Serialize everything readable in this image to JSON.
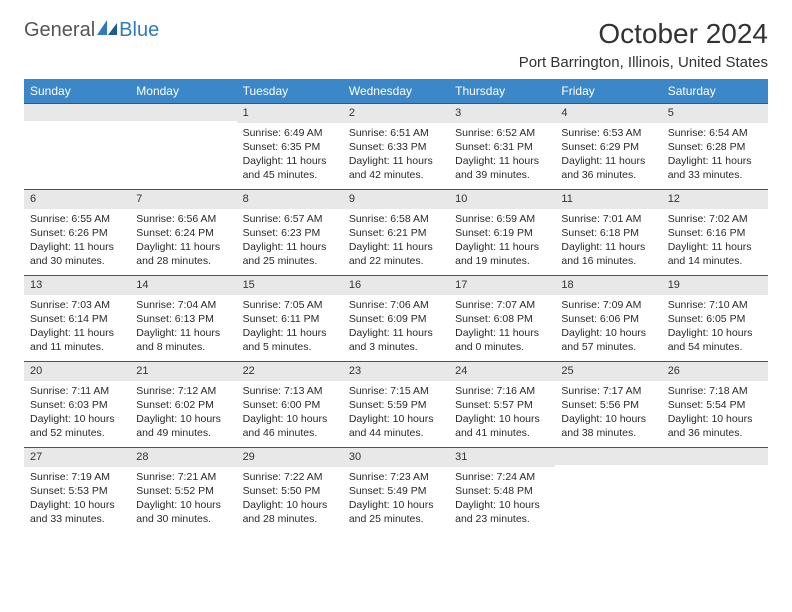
{
  "logo": {
    "text1": "General",
    "text2": "Blue"
  },
  "title": "October 2024",
  "location": "Port Barrington, Illinois, United States",
  "colors": {
    "header_bg": "#3b87c8",
    "header_text": "#ffffff",
    "daynum_bg": "#e8e8e8",
    "rule": "#2b5a86",
    "page_bg": "#ffffff",
    "text": "#222222"
  },
  "day_headers": [
    "Sunday",
    "Monday",
    "Tuesday",
    "Wednesday",
    "Thursday",
    "Friday",
    "Saturday"
  ],
  "weeks": [
    [
      {
        "num": "",
        "sunrise": "",
        "sunset": "",
        "daylight": ""
      },
      {
        "num": "",
        "sunrise": "",
        "sunset": "",
        "daylight": ""
      },
      {
        "num": "1",
        "sunrise": "Sunrise: 6:49 AM",
        "sunset": "Sunset: 6:35 PM",
        "daylight": "Daylight: 11 hours and 45 minutes."
      },
      {
        "num": "2",
        "sunrise": "Sunrise: 6:51 AM",
        "sunset": "Sunset: 6:33 PM",
        "daylight": "Daylight: 11 hours and 42 minutes."
      },
      {
        "num": "3",
        "sunrise": "Sunrise: 6:52 AM",
        "sunset": "Sunset: 6:31 PM",
        "daylight": "Daylight: 11 hours and 39 minutes."
      },
      {
        "num": "4",
        "sunrise": "Sunrise: 6:53 AM",
        "sunset": "Sunset: 6:29 PM",
        "daylight": "Daylight: 11 hours and 36 minutes."
      },
      {
        "num": "5",
        "sunrise": "Sunrise: 6:54 AM",
        "sunset": "Sunset: 6:28 PM",
        "daylight": "Daylight: 11 hours and 33 minutes."
      }
    ],
    [
      {
        "num": "6",
        "sunrise": "Sunrise: 6:55 AM",
        "sunset": "Sunset: 6:26 PM",
        "daylight": "Daylight: 11 hours and 30 minutes."
      },
      {
        "num": "7",
        "sunrise": "Sunrise: 6:56 AM",
        "sunset": "Sunset: 6:24 PM",
        "daylight": "Daylight: 11 hours and 28 minutes."
      },
      {
        "num": "8",
        "sunrise": "Sunrise: 6:57 AM",
        "sunset": "Sunset: 6:23 PM",
        "daylight": "Daylight: 11 hours and 25 minutes."
      },
      {
        "num": "9",
        "sunrise": "Sunrise: 6:58 AM",
        "sunset": "Sunset: 6:21 PM",
        "daylight": "Daylight: 11 hours and 22 minutes."
      },
      {
        "num": "10",
        "sunrise": "Sunrise: 6:59 AM",
        "sunset": "Sunset: 6:19 PM",
        "daylight": "Daylight: 11 hours and 19 minutes."
      },
      {
        "num": "11",
        "sunrise": "Sunrise: 7:01 AM",
        "sunset": "Sunset: 6:18 PM",
        "daylight": "Daylight: 11 hours and 16 minutes."
      },
      {
        "num": "12",
        "sunrise": "Sunrise: 7:02 AM",
        "sunset": "Sunset: 6:16 PM",
        "daylight": "Daylight: 11 hours and 14 minutes."
      }
    ],
    [
      {
        "num": "13",
        "sunrise": "Sunrise: 7:03 AM",
        "sunset": "Sunset: 6:14 PM",
        "daylight": "Daylight: 11 hours and 11 minutes."
      },
      {
        "num": "14",
        "sunrise": "Sunrise: 7:04 AM",
        "sunset": "Sunset: 6:13 PM",
        "daylight": "Daylight: 11 hours and 8 minutes."
      },
      {
        "num": "15",
        "sunrise": "Sunrise: 7:05 AM",
        "sunset": "Sunset: 6:11 PM",
        "daylight": "Daylight: 11 hours and 5 minutes."
      },
      {
        "num": "16",
        "sunrise": "Sunrise: 7:06 AM",
        "sunset": "Sunset: 6:09 PM",
        "daylight": "Daylight: 11 hours and 3 minutes."
      },
      {
        "num": "17",
        "sunrise": "Sunrise: 7:07 AM",
        "sunset": "Sunset: 6:08 PM",
        "daylight": "Daylight: 11 hours and 0 minutes."
      },
      {
        "num": "18",
        "sunrise": "Sunrise: 7:09 AM",
        "sunset": "Sunset: 6:06 PM",
        "daylight": "Daylight: 10 hours and 57 minutes."
      },
      {
        "num": "19",
        "sunrise": "Sunrise: 7:10 AM",
        "sunset": "Sunset: 6:05 PM",
        "daylight": "Daylight: 10 hours and 54 minutes."
      }
    ],
    [
      {
        "num": "20",
        "sunrise": "Sunrise: 7:11 AM",
        "sunset": "Sunset: 6:03 PM",
        "daylight": "Daylight: 10 hours and 52 minutes."
      },
      {
        "num": "21",
        "sunrise": "Sunrise: 7:12 AM",
        "sunset": "Sunset: 6:02 PM",
        "daylight": "Daylight: 10 hours and 49 minutes."
      },
      {
        "num": "22",
        "sunrise": "Sunrise: 7:13 AM",
        "sunset": "Sunset: 6:00 PM",
        "daylight": "Daylight: 10 hours and 46 minutes."
      },
      {
        "num": "23",
        "sunrise": "Sunrise: 7:15 AM",
        "sunset": "Sunset: 5:59 PM",
        "daylight": "Daylight: 10 hours and 44 minutes."
      },
      {
        "num": "24",
        "sunrise": "Sunrise: 7:16 AM",
        "sunset": "Sunset: 5:57 PM",
        "daylight": "Daylight: 10 hours and 41 minutes."
      },
      {
        "num": "25",
        "sunrise": "Sunrise: 7:17 AM",
        "sunset": "Sunset: 5:56 PM",
        "daylight": "Daylight: 10 hours and 38 minutes."
      },
      {
        "num": "26",
        "sunrise": "Sunrise: 7:18 AM",
        "sunset": "Sunset: 5:54 PM",
        "daylight": "Daylight: 10 hours and 36 minutes."
      }
    ],
    [
      {
        "num": "27",
        "sunrise": "Sunrise: 7:19 AM",
        "sunset": "Sunset: 5:53 PM",
        "daylight": "Daylight: 10 hours and 33 minutes."
      },
      {
        "num": "28",
        "sunrise": "Sunrise: 7:21 AM",
        "sunset": "Sunset: 5:52 PM",
        "daylight": "Daylight: 10 hours and 30 minutes."
      },
      {
        "num": "29",
        "sunrise": "Sunrise: 7:22 AM",
        "sunset": "Sunset: 5:50 PM",
        "daylight": "Daylight: 10 hours and 28 minutes."
      },
      {
        "num": "30",
        "sunrise": "Sunrise: 7:23 AM",
        "sunset": "Sunset: 5:49 PM",
        "daylight": "Daylight: 10 hours and 25 minutes."
      },
      {
        "num": "31",
        "sunrise": "Sunrise: 7:24 AM",
        "sunset": "Sunset: 5:48 PM",
        "daylight": "Daylight: 10 hours and 23 minutes."
      },
      {
        "num": "",
        "sunrise": "",
        "sunset": "",
        "daylight": ""
      },
      {
        "num": "",
        "sunrise": "",
        "sunset": "",
        "daylight": ""
      }
    ]
  ]
}
